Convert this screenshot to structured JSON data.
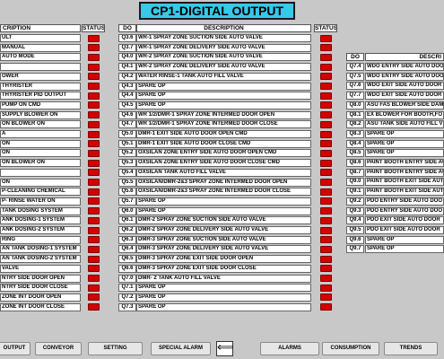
{
  "title": "CP1-DIGITAL OUTPUT",
  "headers": {
    "description": "DESCRIPTION",
    "status": "STATUS",
    "do": "DO"
  },
  "left_partial_header": "CRIPTION",
  "right_partial_header": "DESCRI",
  "left_rows": [
    "ULT",
    "MANUAL",
    "AUTO MODE",
    "",
    "OWER",
    "THYRISTER",
    "THYRISTER PID OUTPUT",
    "PUMP ON CMD",
    "SUPPLY BLOWER ON",
    "ON BLOWER ON",
    "A",
    "ON",
    "ON",
    "ON BLOWER ON",
    "",
    "ON",
    "P-CLEANING CHEMICAL",
    "P- RINSE WATER ON",
    "TANK DOSING SYSTEM",
    "ANK DOSING-1 SYSTEM",
    "ANK DOSING-2 SYSTEM",
    "RING",
    "AN TANK DOSING-1 SYSTEM",
    "AN TANK DOSING-2 SYSTEM",
    "VALVE",
    "NTRY SIDE DOOR OPEN",
    "NTRY SIDE DOOR CLOSE",
    "ZONE INT DOOR OPEN",
    "ZONE INT DOOR CLOSE"
  ],
  "middle_rows": [
    {
      "do": "Q3.6",
      "desc": "WR-1 SPRAY ZONE SUCTION SIDE AUTO VALVE"
    },
    {
      "do": "Q3.7",
      "desc": "WR-1 SPRAY ZONE DELIVERY SIDE AUTO VALVE"
    },
    {
      "do": "Q4.0",
      "desc": "WR-2 SPRAY ZONE SUCTION SIDE AUTO VALVE"
    },
    {
      "do": "Q4.1",
      "desc": "WR-2 SPRAY ZONE DELIVERY SIDE AUTO VALVE"
    },
    {
      "do": "Q4.2",
      "desc": "WATER RINSE-1 TANK AUTO FILL VALVE"
    },
    {
      "do": "Q4.3",
      "desc": "SPARE OP"
    },
    {
      "do": "Q4.4",
      "desc": "SPARE OP"
    },
    {
      "do": "Q4.5",
      "desc": "SPARE OP"
    },
    {
      "do": "Q4.6",
      "desc": "WR 1/2/DMR-1 SPRAY ZONE INTERMED DOOR OPEN"
    },
    {
      "do": "Q4.7",
      "desc": "WR 1/2/DMR-1 SPRAY ZONE INTERMED DOOR CLOSE"
    },
    {
      "do": "Q5.0",
      "desc": "DMR-1 EXIT SIDE AUTO DOOR OPEN CMD"
    },
    {
      "do": "Q5.1",
      "desc": "DMR-1 EXIT SIDE AUTO DOOR CLOSE CMD"
    },
    {
      "do": "Q5.2",
      "desc": "OXSILAN ZONE ENTRY SIDE AUTO DOOR OPEN CMD"
    },
    {
      "do": "Q5.3",
      "desc": "OXSILAN ZONE ENTRY SIDE AUTO DOOR CLOSE CMD"
    },
    {
      "do": "Q5.4",
      "desc": "OXSILAN TANK AUTO FILL VALVE"
    },
    {
      "do": "Q5.5",
      "desc": "OXSILAN/DMR-2&3 SPRAY ZONE INTERMED DOOR OPEN"
    },
    {
      "do": "Q5.6",
      "desc": "OXSILAN/DMR-2&3 SPRAY ZONE INTERMED DOOR CLOSE"
    },
    {
      "do": "Q5.7",
      "desc": "SPARE OP"
    },
    {
      "do": "Q6.0",
      "desc": "SPARE OP"
    },
    {
      "do": "Q6.1",
      "desc": "DMR-2 SPRAY ZONE SUCTION SIDE AUTO VALVE"
    },
    {
      "do": "Q6.2",
      "desc": "DMR-2 SPRAY ZONE DELIVERY SIDE AUTO VALVE"
    },
    {
      "do": "Q6.3",
      "desc": "DMR-3 SPRAY ZONE SUCTION SIDE AUTO VALVE"
    },
    {
      "do": "Q6.4",
      "desc": "DMR-3 SPRAY ZONE DELIVERY SIDE AUTO VALVE"
    },
    {
      "do": "Q6.5",
      "desc": "DMR-3 SPRAY ZONE EXIT SIDE DOOR OPEN"
    },
    {
      "do": "Q6.6",
      "desc": "DMR-3 SPRAY ZONE EXIT SIDE DOOR CLOSE"
    },
    {
      "do": "Q7.0",
      "desc": "DMR- 2 TANK AUTO FILL VALVE"
    },
    {
      "do": "Q7.1",
      "desc": "SPARE OP"
    },
    {
      "do": "Q7.2",
      "desc": "SPARE OP"
    },
    {
      "do": "Q7.3",
      "desc": "SPARE OP"
    }
  ],
  "right_rows": [
    {
      "do": "Q7.4",
      "desc": "WDO ENTRY SIDE AUTO DOO"
    },
    {
      "do": "Q7.5",
      "desc": "WDO ENTRY SIDE AUTO DOO"
    },
    {
      "do": "Q7.6",
      "desc": "WDO EXIT SIDE AUTO DOOR"
    },
    {
      "do": "Q7.7",
      "desc": "WDO EXIT SIDE AUTO DOOR"
    },
    {
      "do": "Q8.0",
      "desc": "ASU FAS BLOWER SIDE DAM"
    },
    {
      "do": "Q8.1",
      "desc": "EX BLOWER FOR BOOTH,FO"
    },
    {
      "do": "Q8.2",
      "desc": "ASU TANK SIDE AUTO FILL V"
    },
    {
      "do": "Q8.3",
      "desc": "SPARE OP"
    },
    {
      "do": "Q8.4",
      "desc": "SPARE OP"
    },
    {
      "do": "Q8.5",
      "desc": "SPARE OP"
    },
    {
      "do": "Q8.6",
      "desc": "PAINT BOOTH ENTRY SIDE AU"
    },
    {
      "do": "Q8.7",
      "desc": "PAINT BOOTH ENTRY SIDE AU"
    },
    {
      "do": "Q9.0",
      "desc": "PAINT BOOTH EXIT SIDE AUTO"
    },
    {
      "do": "Q9.1",
      "desc": "PAINT BOOTH EXIT SIDE AUTO"
    },
    {
      "do": "Q9.2",
      "desc": "PDO ENTRY SIDE AUTO DOO"
    },
    {
      "do": "Q9.3",
      "desc": "PDO ENTRY SIDE AUTO DOO"
    },
    {
      "do": "Q9.4",
      "desc": "PDO EXIT SIDE AUTO DOOR"
    },
    {
      "do": "Q9.5",
      "desc": "PDO EXIT SIDE AUTO DOOR"
    },
    {
      "do": "Q9.6",
      "desc": "SPARE OP"
    },
    {
      "do": "Q9.7",
      "desc": "SPARE OP"
    }
  ],
  "nav": {
    "output": "OUTPUT",
    "conveyor": "CONVEYOR",
    "setting": "SETTING",
    "special_alarm": "SPECIAL ALARM",
    "back_glyph": "⟸",
    "alarms": "ALARMS",
    "consumption": "CONSUMPTION",
    "trends": "TRENDS"
  },
  "colors": {
    "title_bg": "#37c8ea",
    "led_off": "#d40000",
    "panel_bg": "#c8c8c8"
  }
}
